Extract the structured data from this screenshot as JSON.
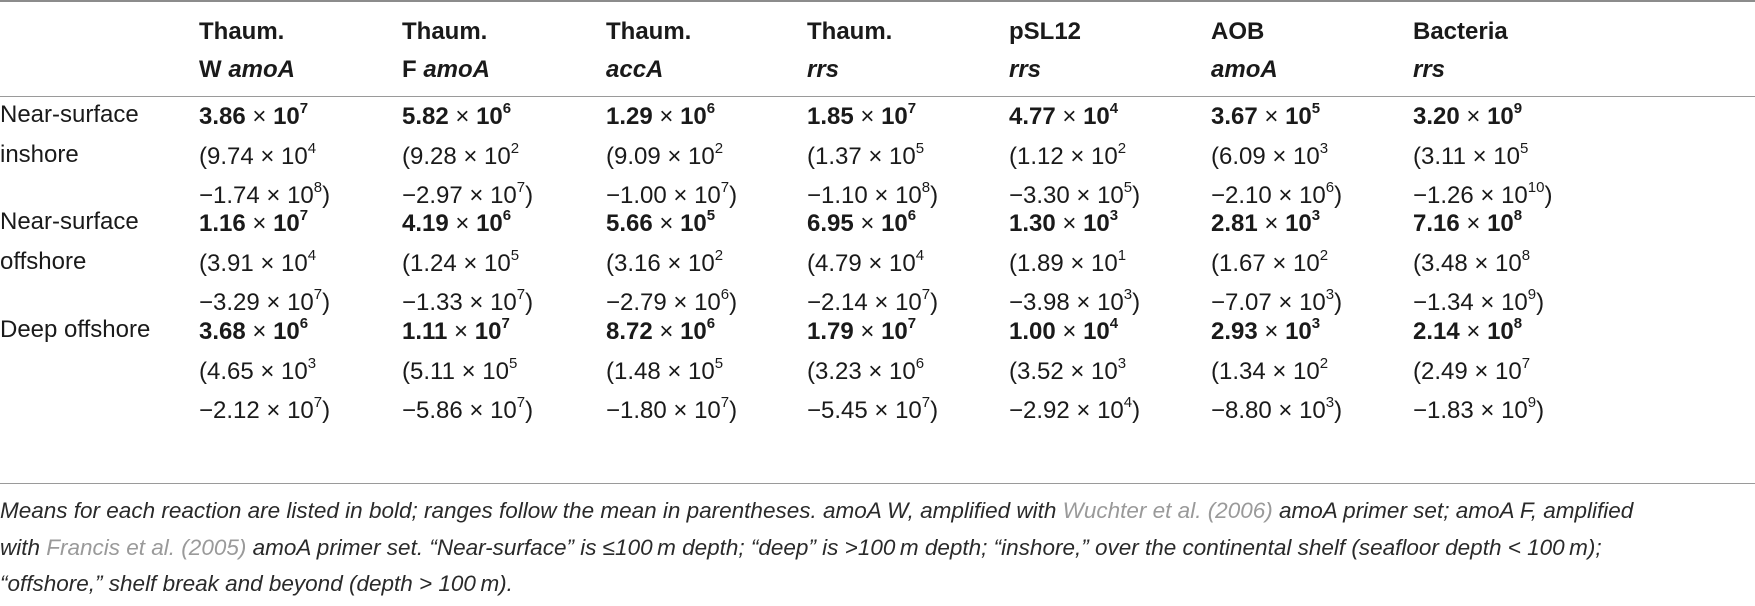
{
  "columns": [
    {
      "line1": "Thaum.",
      "gene_prefix": "W ",
      "gene": "amoA"
    },
    {
      "line1": "Thaum.",
      "gene_prefix": "F ",
      "gene": "amoA"
    },
    {
      "line1": "Thaum.",
      "gene_prefix": "",
      "gene": "accA"
    },
    {
      "line1": "Thaum.",
      "gene_prefix": "",
      "gene": "rrs"
    },
    {
      "line1": "pSL12",
      "gene_prefix": "",
      "gene": "rrs"
    },
    {
      "line1": "AOB",
      "gene_prefix": "",
      "gene": "amoA"
    },
    {
      "line1": "Bacteria",
      "gene_prefix": "",
      "gene": "rrs"
    }
  ],
  "rows": [
    {
      "label_lines": [
        "Near-surface",
        "inshore"
      ],
      "cells": [
        {
          "mean_m": "3.86",
          "mean_e": "7",
          "lo_m": "9.74",
          "lo_e": "4",
          "hi_m": "1.74",
          "hi_e": "8"
        },
        {
          "mean_m": "5.82",
          "mean_e": "6",
          "lo_m": "9.28",
          "lo_e": "2",
          "hi_m": "2.97",
          "hi_e": "7"
        },
        {
          "mean_m": "1.29",
          "mean_e": "6",
          "lo_m": "9.09",
          "lo_e": "2",
          "hi_m": "1.00",
          "hi_e": "7"
        },
        {
          "mean_m": "1.85",
          "mean_e": "7",
          "lo_m": "1.37",
          "lo_e": "5",
          "hi_m": "1.10",
          "hi_e": "8"
        },
        {
          "mean_m": "4.77",
          "mean_e": "4",
          "lo_m": "1.12",
          "lo_e": "2",
          "hi_m": "3.30",
          "hi_e": "5"
        },
        {
          "mean_m": "3.67",
          "mean_e": "5",
          "lo_m": "6.09",
          "lo_e": "3",
          "hi_m": "2.10",
          "hi_e": "6"
        },
        {
          "mean_m": "3.20",
          "mean_e": "9",
          "lo_m": "3.11",
          "lo_e": "5",
          "hi_m": "1.26",
          "hi_e": "10"
        }
      ]
    },
    {
      "label_lines": [
        "Near-surface",
        "offshore"
      ],
      "cells": [
        {
          "mean_m": "1.16",
          "mean_e": "7",
          "lo_m": "3.91",
          "lo_e": "4",
          "hi_m": "3.29",
          "hi_e": "7"
        },
        {
          "mean_m": "4.19",
          "mean_e": "6",
          "lo_m": "1.24",
          "lo_e": "5",
          "hi_m": "1.33",
          "hi_e": "7"
        },
        {
          "mean_m": "5.66",
          "mean_e": "5",
          "lo_m": "3.16",
          "lo_e": "2",
          "hi_m": "2.79",
          "hi_e": "6"
        },
        {
          "mean_m": "6.95",
          "mean_e": "6",
          "lo_m": "4.79",
          "lo_e": "4",
          "hi_m": "2.14",
          "hi_e": "7"
        },
        {
          "mean_m": "1.30",
          "mean_e": "3",
          "lo_m": "1.89",
          "lo_e": "1",
          "hi_m": "3.98",
          "hi_e": "3"
        },
        {
          "mean_m": "2.81",
          "mean_e": "3",
          "lo_m": "1.67",
          "lo_e": "2",
          "hi_m": "7.07",
          "hi_e": "3"
        },
        {
          "mean_m": "7.16",
          "mean_e": "8",
          "lo_m": "3.48",
          "lo_e": "8",
          "hi_m": "1.34",
          "hi_e": "9"
        }
      ]
    },
    {
      "label_lines": [
        "Deep offshore"
      ],
      "cells": [
        {
          "mean_m": "3.68",
          "mean_e": "6",
          "lo_m": "4.65",
          "lo_e": "3",
          "hi_m": "2.12",
          "hi_e": "7"
        },
        {
          "mean_m": "1.11",
          "mean_e": "7",
          "lo_m": "5.11",
          "lo_e": "5",
          "hi_m": "5.86",
          "hi_e": "7"
        },
        {
          "mean_m": "8.72",
          "mean_e": "6",
          "lo_m": "1.48",
          "lo_e": "5",
          "hi_m": "1.80",
          "hi_e": "7"
        },
        {
          "mean_m": "1.79",
          "mean_e": "7",
          "lo_m": "3.23",
          "lo_e": "6",
          "hi_m": "5.45",
          "hi_e": "7"
        },
        {
          "mean_m": "1.00",
          "mean_e": "4",
          "lo_m": "3.52",
          "lo_e": "3",
          "hi_m": "2.92",
          "hi_e": "4"
        },
        {
          "mean_m": "2.93",
          "mean_e": "3",
          "lo_m": "1.34",
          "lo_e": "2",
          "hi_m": "8.80",
          "hi_e": "3"
        },
        {
          "mean_m": "2.14",
          "mean_e": "8",
          "lo_m": "2.49",
          "lo_e": "7",
          "hi_m": "1.83",
          "hi_e": "9"
        }
      ]
    }
  ],
  "footnote": {
    "line1_a": "Means for each reaction are listed in bold; ranges follow the mean in parentheses. amoA W, amplified with ",
    "ref1": "Wuchter et al. (2006)",
    "line1_b": " amoA primer set; amoA F, amplified",
    "line2_a": "with ",
    "ref2": "Francis et al. (2005)",
    "line2_b": " amoA primer set. “Near-surface” is ≤100 m depth; “deep” is >100 m depth; “inshore,” over the continental shelf (seafloor depth < 100 m);",
    "line3": "“offshore,” shelf break and beyond (depth > 100 m)."
  },
  "colors": {
    "rule": "#9a9a9a",
    "reference_link": "#9a9a9a",
    "text": "#1a1a1a"
  }
}
